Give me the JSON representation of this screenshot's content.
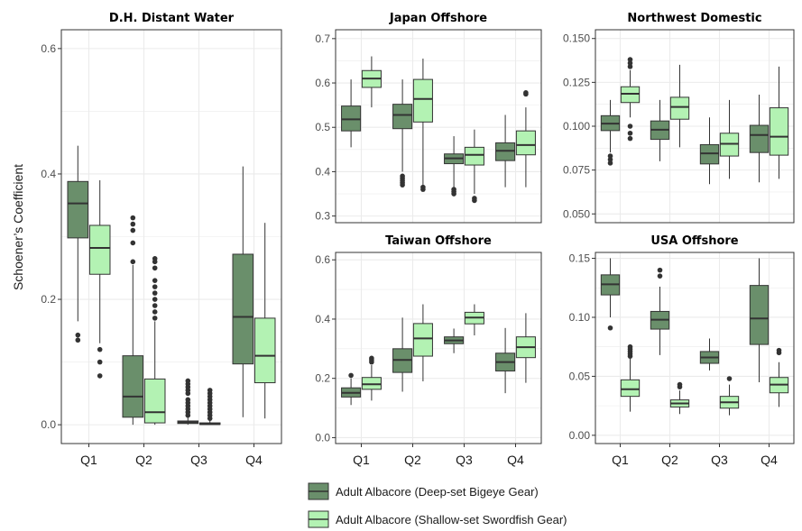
{
  "colors": {
    "dark": "#6a8f6b",
    "light": "#b3f2b3",
    "line": "#333333",
    "grid": "#ebebeb",
    "frame": "#333333"
  },
  "legend": {
    "items": [
      {
        "label": "Adult Albacore (Deep-set Bigeye Gear)",
        "color": "#6a8f6b"
      },
      {
        "label": "Adult Albacore (Shallow-set Swordfish Gear)",
        "color": "#b3f2b3"
      }
    ]
  },
  "chart_data": [
    {
      "type": "box",
      "title": "D.H. Distant Water",
      "ylabel": "Schoener’s Coefficient",
      "categories": [
        "Q1",
        "Q2",
        "Q3",
        "Q4"
      ],
      "ylim": [
        -0.03,
        0.63
      ],
      "yticks": [
        0.0,
        0.2,
        0.4,
        0.6
      ],
      "tick_decimals": 1,
      "grid": true,
      "series": [
        {
          "name": "Adult Albacore (Deep-set Bigeye Gear)",
          "boxes": [
            {
              "min": 0.165,
              "q1": 0.298,
              "median": 0.353,
              "q3": 0.388,
              "max": 0.445,
              "outliers": [
                0.135,
                0.143
              ]
            },
            {
              "min": 0.0,
              "q1": 0.012,
              "median": 0.045,
              "q3": 0.11,
              "max": 0.255,
              "outliers": [
                0.26,
                0.29,
                0.31,
                0.32,
                0.33
              ]
            },
            {
              "min": 0.0,
              "q1": 0.002,
              "median": 0.004,
              "q3": 0.006,
              "max": 0.012,
              "outliers": [
                0.015,
                0.02,
                0.025,
                0.03,
                0.035,
                0.04,
                0.05,
                0.055,
                0.06,
                0.065,
                0.07
              ]
            },
            {
              "min": 0.012,
              "q1": 0.097,
              "median": 0.172,
              "q3": 0.272,
              "max": 0.412,
              "outliers": []
            }
          ]
        },
        {
          "name": "Adult Albacore (Shallow-set Swordfish Gear)",
          "boxes": [
            {
              "min": 0.13,
              "q1": 0.24,
              "median": 0.282,
              "q3": 0.318,
              "max": 0.39,
              "outliers": [
                0.078,
                0.1,
                0.12
              ]
            },
            {
              "min": 0.0,
              "q1": 0.003,
              "median": 0.02,
              "q3": 0.073,
              "max": 0.165,
              "outliers": [
                0.17,
                0.18,
                0.19,
                0.2,
                0.21,
                0.22,
                0.23,
                0.25,
                0.26,
                0.265
              ]
            },
            {
              "min": 0.0,
              "q1": 0.0005,
              "median": 0.001,
              "q3": 0.003,
              "max": 0.007,
              "outliers": [
                0.01,
                0.015,
                0.02,
                0.025,
                0.03,
                0.035,
                0.04,
                0.045,
                0.05,
                0.055
              ]
            },
            {
              "min": 0.01,
              "q1": 0.067,
              "median": 0.11,
              "q3": 0.17,
              "max": 0.322,
              "outliers": []
            }
          ]
        }
      ]
    },
    {
      "type": "box",
      "title": "Japan Offshore",
      "categories": [
        "Q1",
        "Q2",
        "Q3",
        "Q4"
      ],
      "ylim": [
        0.285,
        0.72
      ],
      "yticks": [
        0.3,
        0.4,
        0.5,
        0.6,
        0.7
      ],
      "tick_decimals": 1,
      "grid": true,
      "series": [
        {
          "name": "Adult Albacore (Deep-set Bigeye Gear)",
          "boxes": [
            {
              "min": 0.455,
              "q1": 0.492,
              "median": 0.518,
              "q3": 0.548,
              "max": 0.608,
              "outliers": []
            },
            {
              "min": 0.4,
              "q1": 0.497,
              "median": 0.528,
              "q3": 0.552,
              "max": 0.608,
              "outliers": [
                0.37,
                0.375,
                0.38,
                0.385,
                0.39
              ]
            },
            {
              "min": 0.365,
              "q1": 0.418,
              "median": 0.43,
              "q3": 0.44,
              "max": 0.48,
              "outliers": [
                0.35,
                0.355,
                0.36
              ]
            },
            {
              "min": 0.365,
              "q1": 0.425,
              "median": 0.447,
              "q3": 0.465,
              "max": 0.528,
              "outliers": []
            }
          ]
        },
        {
          "name": "Adult Albacore (Shallow-set Swordfish Gear)",
          "boxes": [
            {
              "min": 0.545,
              "q1": 0.59,
              "median": 0.61,
              "q3": 0.628,
              "max": 0.66,
              "outliers": []
            },
            {
              "min": 0.37,
              "q1": 0.512,
              "median": 0.564,
              "q3": 0.608,
              "max": 0.655,
              "outliers": [
                0.36,
                0.365
              ]
            },
            {
              "min": 0.35,
              "q1": 0.415,
              "median": 0.438,
              "q3": 0.455,
              "max": 0.495,
              "outliers": [
                0.335,
                0.34
              ]
            },
            {
              "min": 0.365,
              "q1": 0.438,
              "median": 0.46,
              "q3": 0.492,
              "max": 0.545,
              "outliers": [
                0.575,
                0.578
              ]
            }
          ]
        }
      ]
    },
    {
      "type": "box",
      "title": "Northwest Domestic",
      "categories": [
        "Q1",
        "Q2",
        "Q3",
        "Q4"
      ],
      "ylim": [
        0.045,
        0.155
      ],
      "yticks": [
        0.05,
        0.075,
        0.1,
        0.125,
        0.15
      ],
      "tick_decimals": 3,
      "grid": true,
      "series": [
        {
          "name": "Adult Albacore (Deep-set Bigeye Gear)",
          "boxes": [
            {
              "min": 0.085,
              "q1": 0.0975,
              "median": 0.1015,
              "q3": 0.106,
              "max": 0.115,
              "outliers": [
                0.079,
                0.081,
                0.083
              ]
            },
            {
              "min": 0.08,
              "q1": 0.0925,
              "median": 0.098,
              "q3": 0.103,
              "max": 0.115,
              "outliers": []
            },
            {
              "min": 0.067,
              "q1": 0.0785,
              "median": 0.0845,
              "q3": 0.0895,
              "max": 0.105,
              "outliers": []
            },
            {
              "min": 0.068,
              "q1": 0.085,
              "median": 0.095,
              "q3": 0.1005,
              "max": 0.118,
              "outliers": []
            }
          ]
        },
        {
          "name": "Adult Albacore (Shallow-set Swordfish Gear)",
          "boxes": [
            {
              "min": 0.105,
              "q1": 0.1135,
              "median": 0.1185,
              "q3": 0.1225,
              "max": 0.132,
              "outliers": [
                0.093,
                0.096,
                0.1,
                0.134,
                0.136,
                0.138
              ]
            },
            {
              "min": 0.088,
              "q1": 0.104,
              "median": 0.111,
              "q3": 0.1165,
              "max": 0.135,
              "outliers": []
            },
            {
              "min": 0.07,
              "q1": 0.083,
              "median": 0.09,
              "q3": 0.096,
              "max": 0.115,
              "outliers": []
            },
            {
              "min": 0.07,
              "q1": 0.0835,
              "median": 0.094,
              "q3": 0.1105,
              "max": 0.134,
              "outliers": []
            }
          ]
        }
      ]
    },
    {
      "type": "box",
      "title": "Taiwan Offshore",
      "categories": [
        "Q1",
        "Q2",
        "Q3",
        "Q4"
      ],
      "ylim": [
        -0.02,
        0.625
      ],
      "yticks": [
        0.0,
        0.2,
        0.4,
        0.6
      ],
      "tick_decimals": 1,
      "grid": true,
      "series": [
        {
          "name": "Adult Albacore (Deep-set Bigeye Gear)",
          "boxes": [
            {
              "min": 0.11,
              "q1": 0.137,
              "median": 0.151,
              "q3": 0.168,
              "max": 0.2,
              "outliers": [
                0.21
              ]
            },
            {
              "min": 0.155,
              "q1": 0.22,
              "median": 0.262,
              "q3": 0.3,
              "max": 0.405,
              "outliers": []
            },
            {
              "min": 0.285,
              "q1": 0.317,
              "median": 0.328,
              "q3": 0.34,
              "max": 0.368,
              "outliers": []
            },
            {
              "min": 0.15,
              "q1": 0.225,
              "median": 0.255,
              "q3": 0.285,
              "max": 0.37,
              "outliers": []
            }
          ]
        },
        {
          "name": "Adult Albacore (Shallow-set Swordfish Gear)",
          "boxes": [
            {
              "min": 0.125,
              "q1": 0.163,
              "median": 0.18,
              "q3": 0.203,
              "max": 0.245,
              "outliers": [
                0.255,
                0.262,
                0.268
              ]
            },
            {
              "min": 0.19,
              "q1": 0.275,
              "median": 0.335,
              "q3": 0.385,
              "max": 0.45,
              "outliers": []
            },
            {
              "min": 0.345,
              "q1": 0.384,
              "median": 0.405,
              "q3": 0.423,
              "max": 0.45,
              "outliers": []
            },
            {
              "min": 0.185,
              "q1": 0.27,
              "median": 0.305,
              "q3": 0.34,
              "max": 0.42,
              "outliers": []
            }
          ]
        }
      ]
    },
    {
      "type": "box",
      "title": "USA Offshore",
      "categories": [
        "Q1",
        "Q2",
        "Q3",
        "Q4"
      ],
      "ylim": [
        -0.007,
        0.155
      ],
      "yticks": [
        0.0,
        0.05,
        0.1,
        0.15
      ],
      "tick_decimals": 2,
      "grid": true,
      "series": [
        {
          "name": "Adult Albacore (Deep-set Bigeye Gear)",
          "boxes": [
            {
              "min": 0.1,
              "q1": 0.119,
              "median": 0.128,
              "q3": 0.136,
              "max": 0.15,
              "outliers": [
                0.091
              ]
            },
            {
              "min": 0.068,
              "q1": 0.09,
              "median": 0.098,
              "q3": 0.105,
              "max": 0.126,
              "outliers": [
                0.135,
                0.14
              ]
            },
            {
              "min": 0.055,
              "q1": 0.061,
              "median": 0.066,
              "q3": 0.071,
              "max": 0.082,
              "outliers": []
            },
            {
              "min": 0.045,
              "q1": 0.077,
              "median": 0.099,
              "q3": 0.127,
              "max": 0.15,
              "outliers": []
            }
          ]
        },
        {
          "name": "Adult Albacore (Shallow-set Swordfish Gear)",
          "boxes": [
            {
              "min": 0.02,
              "q1": 0.033,
              "median": 0.039,
              "q3": 0.047,
              "max": 0.065,
              "outliers": [
                0.067,
                0.069,
                0.071,
                0.073,
                0.075
              ]
            },
            {
              "min": 0.018,
              "q1": 0.024,
              "median": 0.027,
              "q3": 0.03,
              "max": 0.038,
              "outliers": [
                0.041,
                0.043
              ]
            },
            {
              "min": 0.017,
              "q1": 0.023,
              "median": 0.028,
              "q3": 0.033,
              "max": 0.043,
              "outliers": [
                0.048
              ]
            },
            {
              "min": 0.024,
              "q1": 0.036,
              "median": 0.043,
              "q3": 0.049,
              "max": 0.062,
              "outliers": [
                0.07,
                0.072
              ]
            }
          ]
        }
      ]
    }
  ]
}
